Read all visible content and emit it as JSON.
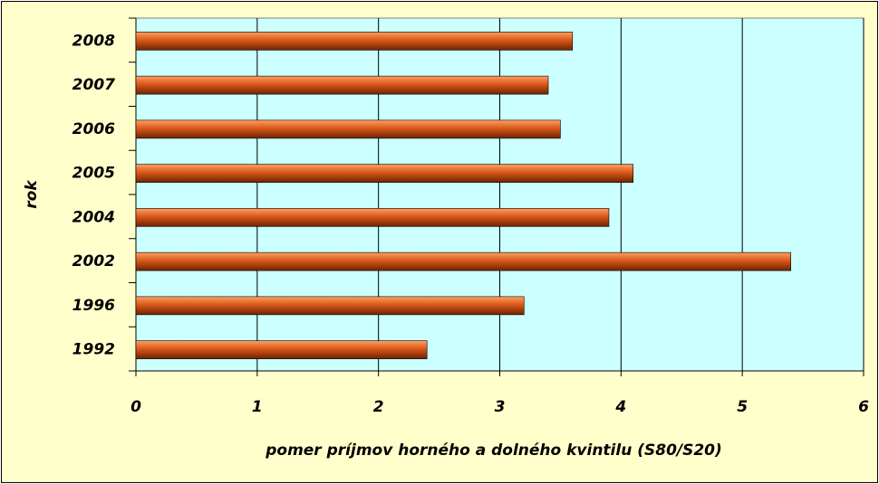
{
  "chart_data": {
    "type": "barh",
    "categories": [
      "1992",
      "1996",
      "2002",
      "2004",
      "2005",
      "2006",
      "2007",
      "2008"
    ],
    "values": [
      2.4,
      3.2,
      5.4,
      3.9,
      4.1,
      3.5,
      3.4,
      3.6
    ],
    "color": "#d9581a",
    "xlabel": "pomer príjmov horného a dolného kvintilu (S80/S20)",
    "ylabel": "rok",
    "xlim": [
      0,
      6
    ],
    "xticks": [
      0,
      1,
      2,
      3,
      4,
      5,
      6
    ],
    "grid": true
  }
}
